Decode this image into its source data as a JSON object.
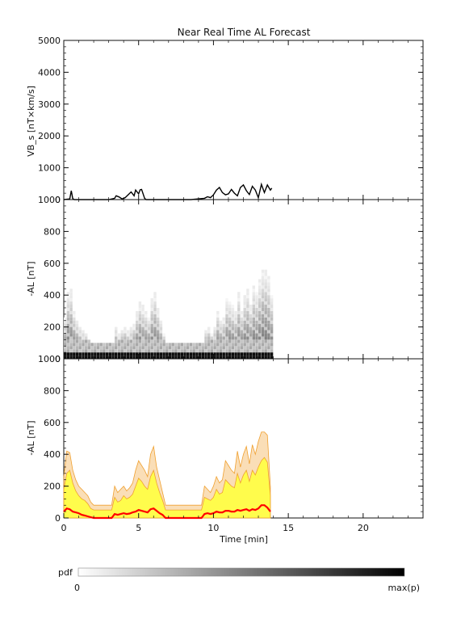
{
  "title": "Near Real Time AL Forecast",
  "chart_data": [
    {
      "type": "line",
      "panel": "vbs",
      "ylabel": "VB_s [nT×km/s]",
      "xlim": [
        0,
        24
      ],
      "ylim": [
        0,
        5000
      ],
      "yticks": [
        "0",
        "1000",
        "2000",
        "3000",
        "4000",
        "5000"
      ],
      "series": [
        {
          "color": "#000000",
          "x": [
            0.0,
            0.4,
            0.5,
            0.6,
            0.7,
            1.0,
            2.0,
            3.0,
            3.4,
            3.5,
            3.7,
            3.9,
            4.1,
            4.3,
            4.5,
            4.7,
            4.8,
            5.0,
            5.1,
            5.2,
            5.4,
            5.5,
            5.8,
            6.5,
            7.5,
            8.5,
            9.4,
            9.6,
            9.8,
            10.0,
            10.2,
            10.4,
            10.6,
            10.8,
            11.0,
            11.2,
            11.4,
            11.6,
            11.8,
            12.0,
            12.2,
            12.4,
            12.6,
            12.8,
            13.0,
            13.2,
            13.4,
            13.6,
            13.8,
            13.9
          ],
          "y": [
            0,
            20,
            280,
            30,
            0,
            0,
            0,
            0,
            40,
            120,
            80,
            20,
            60,
            150,
            240,
            120,
            300,
            180,
            310,
            320,
            40,
            0,
            0,
            0,
            0,
            0,
            40,
            90,
            60,
            150,
            300,
            380,
            220,
            150,
            180,
            320,
            200,
            120,
            380,
            460,
            280,
            160,
            420,
            300,
            60,
            480,
            220,
            460,
            300,
            360
          ]
        }
      ]
    },
    {
      "type": "heatmap",
      "panel": "al-pdf",
      "ylabel": "-AL [nT]",
      "xlim": [
        0,
        24
      ],
      "ylim": [
        0,
        1000
      ],
      "yticks": [
        "0",
        "200",
        "400",
        "600",
        "800",
        "1000"
      ],
      "x_columns_minutes": [
        0.0,
        0.2,
        0.4,
        0.6,
        0.8,
        1.0,
        1.2,
        1.4,
        1.6,
        1.8,
        2.0,
        2.2,
        2.4,
        2.6,
        2.8,
        3.0,
        3.2,
        3.4,
        3.6,
        3.8,
        4.0,
        4.2,
        4.4,
        4.6,
        4.8,
        5.0,
        5.2,
        5.4,
        5.6,
        5.8,
        6.0,
        6.2,
        6.4,
        6.6,
        6.8,
        7.0,
        7.2,
        7.4,
        7.6,
        7.8,
        8.0,
        8.2,
        8.4,
        8.6,
        8.8,
        9.0,
        9.2,
        9.4,
        9.6,
        9.8,
        10.0,
        10.2,
        10.4,
        10.6,
        10.8,
        11.0,
        11.2,
        11.4,
        11.6,
        11.8,
        12.0,
        12.2,
        12.4,
        12.6,
        12.8,
        13.0,
        13.2,
        13.4,
        13.6,
        13.8
      ],
      "column_top_AL": [
        260,
        420,
        440,
        300,
        240,
        200,
        180,
        160,
        120,
        80,
        60,
        60,
        60,
        60,
        60,
        60,
        80,
        200,
        160,
        180,
        200,
        170,
        190,
        220,
        300,
        360,
        330,
        300,
        260,
        380,
        420,
        320,
        240,
        160,
        80,
        60,
        60,
        60,
        60,
        60,
        60,
        60,
        60,
        60,
        60,
        60,
        60,
        180,
        200,
        160,
        200,
        300,
        240,
        260,
        380,
        360,
        330,
        300,
        420,
        300,
        400,
        440,
        340,
        460,
        420,
        500,
        560,
        560,
        520,
        400
      ],
      "column_median_AL": [
        40,
        60,
        55,
        40,
        35,
        30,
        20,
        15,
        10,
        5,
        0,
        0,
        0,
        0,
        0,
        0,
        5,
        25,
        20,
        25,
        30,
        25,
        28,
        35,
        40,
        50,
        45,
        40,
        35,
        55,
        60,
        45,
        30,
        20,
        5,
        0,
        0,
        0,
        0,
        0,
        0,
        0,
        0,
        0,
        0,
        0,
        0,
        25,
        30,
        25,
        30,
        40,
        35,
        35,
        45,
        45,
        40,
        40,
        50,
        45,
        50,
        55,
        45,
        55,
        50,
        60,
        80,
        75,
        65,
        50
      ],
      "colorbar_label": "pdf",
      "colorbar_min_label": "0",
      "colorbar_max_label": "max(p)"
    },
    {
      "type": "area",
      "panel": "al-quantiles",
      "ylabel": "-AL [nT]",
      "xlabel": "Time [min]",
      "xlim": [
        0,
        24
      ],
      "ylim": [
        0,
        1000
      ],
      "xticks": [
        "0",
        "5",
        "10",
        "15",
        "20"
      ],
      "yticks": [
        "0",
        "200",
        "400",
        "600",
        "800",
        "1000"
      ],
      "x": [
        0.0,
        0.2,
        0.4,
        0.6,
        0.8,
        1.0,
        1.2,
        1.4,
        1.6,
        1.8,
        2.0,
        2.4,
        2.8,
        3.2,
        3.4,
        3.6,
        3.8,
        4.0,
        4.2,
        4.4,
        4.6,
        4.8,
        5.0,
        5.2,
        5.4,
        5.6,
        5.8,
        6.0,
        6.2,
        6.4,
        6.6,
        6.8,
        7.2,
        7.6,
        8.0,
        8.4,
        8.8,
        9.2,
        9.4,
        9.6,
        9.8,
        10.0,
        10.2,
        10.4,
        10.6,
        10.8,
        11.0,
        11.2,
        11.4,
        11.6,
        11.8,
        12.0,
        12.2,
        12.4,
        12.6,
        12.8,
        13.0,
        13.2,
        13.4,
        13.6,
        13.8
      ],
      "series": [
        {
          "color": "#f0a030",
          "values": [
            260,
            420,
            410,
            300,
            240,
            200,
            180,
            160,
            140,
            100,
            80,
            80,
            80,
            80,
            200,
            160,
            180,
            200,
            170,
            190,
            220,
            300,
            360,
            330,
            300,
            260,
            400,
            450,
            320,
            240,
            160,
            80,
            80,
            80,
            80,
            80,
            80,
            80,
            200,
            180,
            160,
            200,
            260,
            220,
            240,
            360,
            330,
            300,
            280,
            420,
            320,
            400,
            450,
            340,
            460,
            400,
            480,
            540,
            540,
            520,
            200
          ]
        },
        {
          "color": "#ffff40",
          "values": [
            180,
            280,
            300,
            220,
            170,
            140,
            120,
            110,
            90,
            60,
            50,
            50,
            50,
            50,
            130,
            100,
            110,
            140,
            120,
            130,
            150,
            200,
            250,
            230,
            200,
            180,
            260,
            300,
            220,
            160,
            110,
            50,
            50,
            50,
            50,
            50,
            50,
            50,
            130,
            120,
            110,
            130,
            180,
            150,
            160,
            240,
            220,
            200,
            190,
            280,
            220,
            270,
            300,
            230,
            300,
            270,
            320,
            360,
            380,
            350,
            140
          ]
        },
        {
          "color": "#ff0000",
          "values": [
            40,
            60,
            55,
            40,
            35,
            30,
            20,
            15,
            10,
            5,
            0,
            0,
            0,
            0,
            25,
            20,
            25,
            30,
            25,
            28,
            35,
            40,
            50,
            45,
            40,
            35,
            55,
            60,
            45,
            30,
            20,
            0,
            0,
            0,
            0,
            0,
            0,
            0,
            25,
            30,
            25,
            30,
            40,
            35,
            35,
            45,
            45,
            40,
            40,
            50,
            45,
            50,
            55,
            45,
            55,
            50,
            60,
            80,
            80,
            65,
            40
          ]
        }
      ]
    }
  ]
}
